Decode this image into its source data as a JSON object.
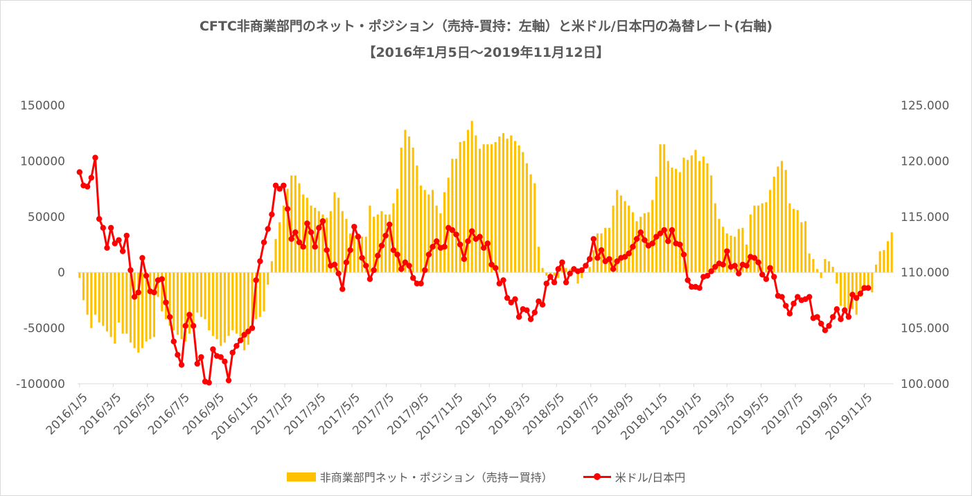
{
  "chart_data": {
    "type": "bar+line",
    "title": "CFTC非商業部門のネット・ポジション（売持-買持：左軸）と米ドル/日本円の為替レート(右軸)",
    "subtitle": "【2016年1月5日～2019年11月12日】",
    "start_date": "2016-01-05",
    "interval_days": 7,
    "left_axis": {
      "ylim": [
        -100000,
        150000
      ],
      "ticks": [
        "-100000",
        "-50000",
        "0",
        "50000",
        "100000",
        "150000"
      ]
    },
    "right_axis": {
      "ylim": [
        100,
        125
      ],
      "ticks": [
        "100.000",
        "105.000",
        "110.000",
        "115.000",
        "120.000",
        "125.000"
      ]
    },
    "x_tick_labels": [
      "2016/1/5",
      "2016/3/5",
      "2016/5/5",
      "2016/7/5",
      "2016/9/5",
      "2016/11/5",
      "2017/1/5",
      "2017/3/5",
      "2017/5/5",
      "2017/7/5",
      "2017/9/5",
      "2017/11/5",
      "2018/1/5",
      "2018/3/5",
      "2018/5/5",
      "2018/7/5",
      "2018/9/5",
      "2018/11/5",
      "2019/1/5",
      "2019/3/5",
      "2019/5/5",
      "2019/7/5",
      "2019/9/5",
      "2019/11/5"
    ],
    "grid": false,
    "legend_position": "bottom",
    "series": [
      {
        "name": "非商業部門ネット・ポジション（売持ー買持）",
        "type": "bar",
        "axis": "left",
        "color": "#FFC000",
        "values": [
          -5000,
          -25000,
          -38000,
          -50000,
          -38000,
          -45000,
          -48000,
          -53000,
          -58000,
          -64000,
          -45000,
          -55000,
          -55000,
          -63000,
          -68000,
          -72000,
          -68000,
          -62000,
          -60000,
          -58000,
          -22000,
          -35000,
          -42000,
          -48000,
          -52000,
          -56000,
          -60000,
          -62000,
          -55000,
          -50000,
          -36000,
          -40000,
          -42000,
          -52000,
          -57000,
          -60000,
          -66000,
          -63000,
          -57000,
          -52000,
          -55000,
          -58000,
          -70000,
          -65000,
          -47000,
          -42000,
          -40000,
          -35000,
          -11000,
          10000,
          30000,
          45000,
          60000,
          75000,
          87000,
          87000,
          80000,
          70000,
          67000,
          60000,
          58000,
          55000,
          52000,
          49000,
          55000,
          72000,
          67000,
          55000,
          48000,
          35000,
          33000,
          35000,
          32000,
          32000,
          60000,
          50000,
          52000,
          55000,
          52000,
          52000,
          62000,
          75000,
          112000,
          128000,
          122000,
          112000,
          96000,
          78000,
          74000,
          70000,
          74000,
          60000,
          53000,
          72000,
          85000,
          102000,
          102000,
          117000,
          118000,
          128000,
          136000,
          123000,
          111000,
          115000,
          115000,
          115000,
          117000,
          122000,
          125000,
          120000,
          123000,
          118000,
          114000,
          108000,
          98000,
          88000,
          80000,
          23000,
          4000,
          -3000,
          -3000,
          -3000,
          -5000,
          8000,
          4000,
          3000,
          0,
          -10000,
          -5000,
          0,
          5000,
          20000,
          35000,
          35000,
          40000,
          40000,
          60000,
          74000,
          69000,
          64000,
          60000,
          54000,
          46000,
          50000,
          53000,
          54000,
          65000,
          86000,
          115000,
          115000,
          100000,
          94000,
          93000,
          90000,
          103000,
          101000,
          105000,
          110000,
          100000,
          104000,
          98000,
          87000,
          62000,
          48000,
          41000,
          35000,
          33000,
          32000,
          39000,
          40000,
          25000,
          52000,
          60000,
          60000,
          62000,
          63000,
          74000,
          86000,
          95000,
          100000,
          92000,
          62000,
          57000,
          56000,
          45000,
          46000,
          17000,
          12000,
          3000,
          -5000,
          12000,
          10000,
          5000,
          -10000,
          -30000,
          -35000,
          -33000,
          -33000,
          -38000,
          -22000,
          -15000,
          -16000,
          -18000,
          7000,
          19000,
          20000,
          28000,
          36000
        ]
      },
      {
        "name": "米ドル/日本円",
        "type": "line",
        "axis": "right",
        "color": "#FF0000",
        "values": [
          119.0,
          117.8,
          117.7,
          118.5,
          120.3,
          114.8,
          114.0,
          112.2,
          114.0,
          112.6,
          112.9,
          111.9,
          113.3,
          110.2,
          107.8,
          108.2,
          111.3,
          109.7,
          108.3,
          108.2,
          109.3,
          109.4,
          107.3,
          106.0,
          103.8,
          102.6,
          101.7,
          105.2,
          106.2,
          105.2,
          101.8,
          102.4,
          100.2,
          100.1,
          103.1,
          102.5,
          102.4,
          102.0,
          100.3,
          102.8,
          103.4,
          103.9,
          104.4,
          104.7,
          105.0,
          109.3,
          111.0,
          112.7,
          113.9,
          115.2,
          117.8,
          117.5,
          117.8,
          115.7,
          113.0,
          113.6,
          112.7,
          112.3,
          114.4,
          113.6,
          112.3,
          114.0,
          114.6,
          112.0,
          110.6,
          110.7,
          109.9,
          108.5,
          110.9,
          112.0,
          114.1,
          113.2,
          111.3,
          110.6,
          109.4,
          110.2,
          111.5,
          112.4,
          113.3,
          114.3,
          112.0,
          111.6,
          110.3,
          110.9,
          110.6,
          109.5,
          109.0,
          109.0,
          110.2,
          111.6,
          112.3,
          112.8,
          112.2,
          112.3,
          114.0,
          113.8,
          113.4,
          112.5,
          111.2,
          112.8,
          113.7,
          113.0,
          113.2,
          112.2,
          112.6,
          110.7,
          110.4,
          109.0,
          109.3,
          107.7,
          107.3,
          107.6,
          106.0,
          106.7,
          106.6,
          105.8,
          106.4,
          107.4,
          107.1,
          109.0,
          109.6,
          109.1,
          110.3,
          110.9,
          109.1,
          109.9,
          110.3,
          110.1,
          110.2,
          110.6,
          111.2,
          113.0,
          111.3,
          112.0,
          111.0,
          111.2,
          110.3,
          111.0,
          111.3,
          111.4,
          111.7,
          112.3,
          113.0,
          113.6,
          112.9,
          112.4,
          112.6,
          113.2,
          113.5,
          113.8,
          112.8,
          113.8,
          112.6,
          112.5,
          111.6,
          109.3,
          108.7,
          108.7,
          108.6,
          109.6,
          109.7,
          110.1,
          110.5,
          110.8,
          110.7,
          111.9,
          110.5,
          110.6,
          109.9,
          110.7,
          110.6,
          111.4,
          111.3,
          110.9,
          109.8,
          109.4,
          110.4,
          109.6,
          107.9,
          107.8,
          107.0,
          106.3,
          107.2,
          107.8,
          107.5,
          107.6,
          107.8,
          105.9,
          106.0,
          105.4,
          104.8,
          105.2,
          106.0,
          106.7,
          105.8,
          106.6,
          106.0,
          108.0,
          107.7,
          108.1,
          108.6,
          108.6
        ]
      }
    ]
  }
}
